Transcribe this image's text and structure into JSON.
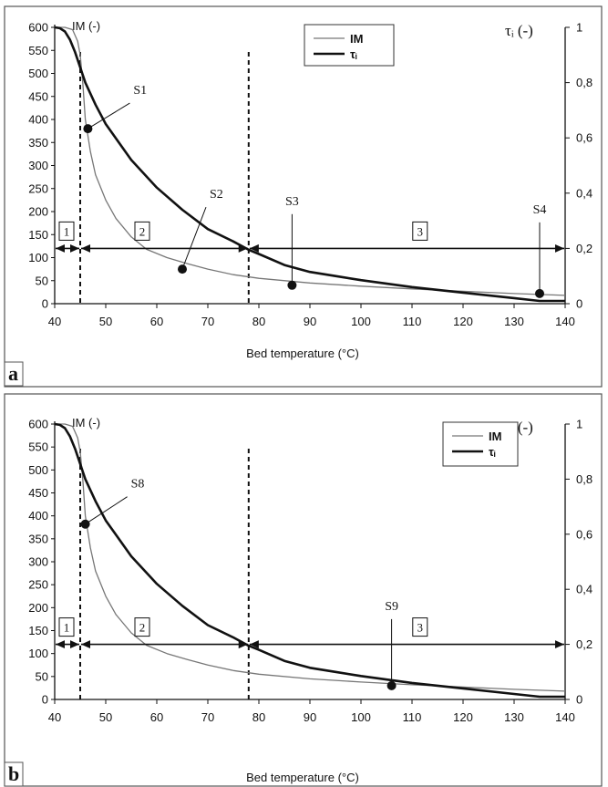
{
  "chart_data": [
    {
      "type": "line",
      "panel_label": "a",
      "xlabel": "Bed temperature (°C)",
      "ylabel_left": "IM (-)",
      "ylabel_right": "τᵢ (-)",
      "xlim": [
        40,
        140
      ],
      "x_ticks": [
        40,
        50,
        60,
        70,
        80,
        90,
        100,
        110,
        120,
        130,
        140
      ],
      "ylim_left": [
        0,
        600
      ],
      "y_ticks_left": [
        0,
        50,
        100,
        150,
        200,
        250,
        300,
        350,
        400,
        450,
        500,
        550,
        600
      ],
      "ylim_right": [
        0,
        1
      ],
      "y_ticks_right": [
        "0",
        "0,2",
        "0,4",
        "0,6",
        "0,8",
        "1"
      ],
      "grid": false,
      "legend": {
        "position": "top-center",
        "entries": [
          "IM",
          "τᵢ"
        ]
      },
      "series": [
        {
          "name": "IM",
          "axis": "left",
          "x": [
            40,
            42,
            43.5,
            44.5,
            45,
            45.5,
            46,
            47,
            48,
            50,
            52,
            55,
            58,
            62,
            66,
            70,
            75,
            80,
            90,
            100,
            110,
            120,
            130,
            140
          ],
          "values": [
            600,
            600,
            595,
            570,
            540,
            480,
            400,
            330,
            280,
            225,
            185,
            145,
            118,
            100,
            87,
            75,
            63,
            55,
            45,
            38,
            32,
            27,
            22,
            18
          ]
        },
        {
          "name": "τᵢ",
          "axis": "right",
          "x": [
            40,
            41,
            42,
            43,
            44,
            45,
            46,
            48,
            50,
            55,
            60,
            65,
            70,
            75,
            78,
            80,
            85,
            90,
            95,
            100,
            110,
            120,
            130,
            135,
            140
          ],
          "values": [
            1.0,
            0.997,
            0.985,
            0.955,
            0.91,
            0.855,
            0.8,
            0.72,
            0.65,
            0.52,
            0.42,
            0.34,
            0.27,
            0.225,
            0.195,
            0.18,
            0.14,
            0.115,
            0.1,
            0.085,
            0.06,
            0.04,
            0.02,
            0.01,
            0.01
          ]
        }
      ],
      "vertical_lines": [
        45,
        78
      ],
      "zones": [
        {
          "label": "1",
          "x_start": 40,
          "x_end": 45
        },
        {
          "label": "2",
          "x_start": 45,
          "x_end": 78
        },
        {
          "label": "3",
          "x_start": 78,
          "x_end": 140
        }
      ],
      "zone_arrow_y": 120,
      "samples": [
        {
          "label": "S1",
          "x": 46.5,
          "y": 380
        },
        {
          "label": "S2",
          "x": 65,
          "y": 75
        },
        {
          "label": "S3",
          "x": 86.5,
          "y": 40
        },
        {
          "label": "S4",
          "x": 135,
          "y": 22
        }
      ]
    },
    {
      "type": "line",
      "panel_label": "b",
      "xlabel": "Bed temperature (°C)",
      "ylabel_left": "IM (-)",
      "ylabel_right": "τᵢ (-)",
      "xlim": [
        40,
        140
      ],
      "x_ticks": [
        40,
        50,
        60,
        70,
        80,
        90,
        100,
        110,
        120,
        130,
        140
      ],
      "ylim_left": [
        0,
        600
      ],
      "y_ticks_left": [
        0,
        50,
        100,
        150,
        200,
        250,
        300,
        350,
        400,
        450,
        500,
        550,
        600
      ],
      "ylim_right": [
        0,
        1
      ],
      "y_ticks_right": [
        "0",
        "0,2",
        "0,4",
        "0,6",
        "0,8",
        "1"
      ],
      "grid": false,
      "legend": {
        "position": "top-right",
        "entries": [
          "IM",
          "τᵢ"
        ]
      },
      "series": [
        {
          "name": "IM",
          "axis": "left",
          "x": [
            40,
            42,
            43.5,
            44.5,
            45,
            45.5,
            46,
            47,
            48,
            50,
            52,
            55,
            58,
            62,
            66,
            70,
            75,
            80,
            90,
            100,
            110,
            120,
            130,
            140
          ],
          "values": [
            600,
            600,
            595,
            570,
            540,
            480,
            400,
            330,
            280,
            225,
            185,
            145,
            118,
            100,
            87,
            75,
            63,
            55,
            45,
            38,
            32,
            27,
            22,
            18
          ]
        },
        {
          "name": "τᵢ",
          "axis": "right",
          "x": [
            40,
            41,
            42,
            43,
            44,
            45,
            46,
            48,
            50,
            55,
            60,
            65,
            70,
            75,
            78,
            80,
            85,
            90,
            95,
            100,
            110,
            120,
            130,
            135,
            140
          ],
          "values": [
            1.0,
            0.997,
            0.985,
            0.955,
            0.91,
            0.855,
            0.8,
            0.72,
            0.65,
            0.52,
            0.42,
            0.34,
            0.27,
            0.225,
            0.195,
            0.18,
            0.14,
            0.115,
            0.1,
            0.085,
            0.06,
            0.04,
            0.02,
            0.01,
            0.01
          ]
        }
      ],
      "vertical_lines": [
        45,
        78
      ],
      "zones": [
        {
          "label": "1",
          "x_start": 40,
          "x_end": 45
        },
        {
          "label": "2",
          "x_start": 45,
          "x_end": 78
        },
        {
          "label": "3",
          "x_start": 78,
          "x_end": 140
        }
      ],
      "zone_arrow_y": 120,
      "samples": [
        {
          "label": "S8",
          "x": 46,
          "y": 382
        },
        {
          "label": "S9",
          "x": 106,
          "y": 30
        }
      ]
    }
  ]
}
